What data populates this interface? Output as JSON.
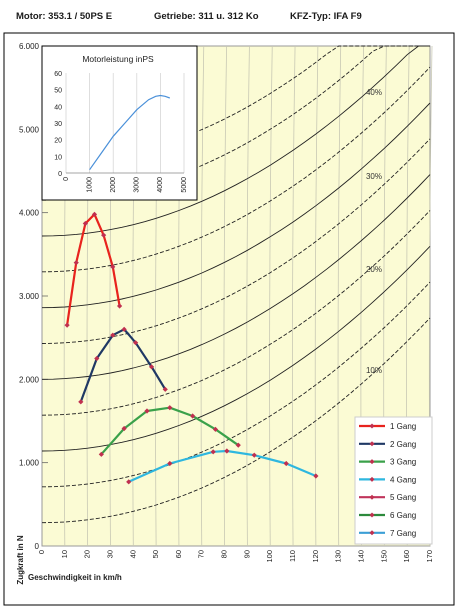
{
  "header": {
    "motor": "Motor: 353.1 / 50PS E",
    "getriebe": "Getriebe: 311 u. 312 Ko",
    "kfz_typ": "KFZ-Typ: IFA F9"
  },
  "chart_data": [
    {
      "type": "line",
      "title": "",
      "xlabel": "Geschwindigkeit in km/h",
      "ylabel": "Zugkraft in N",
      "xlim": [
        0,
        170
      ],
      "ylim": [
        0,
        6000
      ],
      "x_ticks": [
        "0",
        "10",
        "20",
        "30",
        "40",
        "50",
        "60",
        "70",
        "80",
        "90",
        "100",
        "110",
        "120",
        "130",
        "140",
        "150",
        "160",
        "170"
      ],
      "y_ticks": [
        "0",
        "1.000",
        "2.000",
        "3.000",
        "4.000",
        "5.000",
        "6.000"
      ],
      "grid": "vertical",
      "legend_position": "right",
      "background_color": "#fbfbd4",
      "series": [
        {
          "name": "1 Gang",
          "color": "#e8231d",
          "x": [
            11,
            15,
            19,
            23,
            27,
            31,
            34
          ],
          "y": [
            2650,
            3400,
            3870,
            3980,
            3730,
            3350,
            2880
          ]
        },
        {
          "name": "2 Gang",
          "color": "#1f3864",
          "x": [
            17,
            24,
            31,
            36,
            41,
            48,
            54
          ],
          "y": [
            1730,
            2250,
            2530,
            2600,
            2440,
            2150,
            1880
          ]
        },
        {
          "name": "3 Gang",
          "color": "#3aa14a",
          "x": [
            26,
            36,
            46,
            56,
            66,
            76,
            86
          ],
          "y": [
            1100,
            1410,
            1620,
            1660,
            1560,
            1400,
            1210
          ]
        },
        {
          "name": "4 Gang",
          "color": "#2eb7df",
          "x": [
            38,
            56,
            75,
            81,
            93,
            107,
            120
          ],
          "y": [
            770,
            990,
            1130,
            1140,
            1090,
            990,
            840
          ]
        },
        {
          "name": "5 Gang",
          "color": "#c0345b",
          "x": [],
          "y": []
        },
        {
          "name": "6 Gang",
          "color": "#2c8a3c",
          "x": [],
          "y": []
        },
        {
          "name": "7 Gang",
          "color": "#3b9fd6",
          "x": [],
          "y": []
        }
      ],
      "annotations": [
        "40%",
        "30%",
        "20%",
        "10%"
      ]
    },
    {
      "type": "line",
      "title": "Motorleistung inPS",
      "xlim": [
        0,
        5000
      ],
      "ylim": [
        0,
        60
      ],
      "x_ticks": [
        "0",
        "1000",
        "2000",
        "3000",
        "4000",
        "5000"
      ],
      "y_ticks": [
        "0",
        "10",
        "20",
        "30",
        "40",
        "50",
        "60"
      ],
      "series": [
        {
          "name": "",
          "color": "#4a90d9",
          "x": [
            1000,
            1500,
            2000,
            2500,
            3000,
            3500,
            3800,
            4000,
            4200,
            4400
          ],
          "y": [
            2,
            12,
            22,
            30,
            38,
            44,
            46,
            46.5,
            46,
            45
          ]
        }
      ]
    }
  ]
}
